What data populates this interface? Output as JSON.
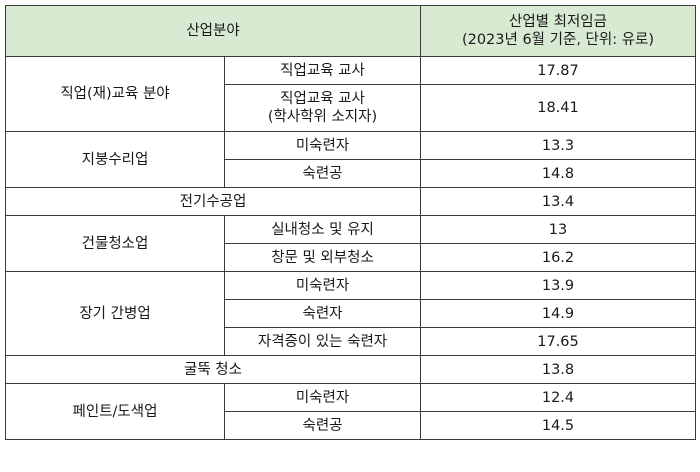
{
  "header": {
    "industry": "산업분야",
    "wage_line1": "산업별 최저임금",
    "wage_line2": "(2023년 6월 기준, 단위: 유로)"
  },
  "rows": [
    {
      "group": "직업(재)교육 분야",
      "sub": "직업교육 교사",
      "wage": "17.87"
    },
    {
      "sub_line1": "직업교육 교사",
      "sub_line2": "(학사학위 소지자)",
      "wage": "18.41"
    },
    {
      "group": "지붕수리업",
      "sub": "미숙련자",
      "wage": "13.3"
    },
    {
      "sub": "숙련공",
      "wage": "14.8"
    },
    {
      "group": "전기수공업",
      "wage": "13.4"
    },
    {
      "group": "건물청소업",
      "sub": "실내청소 및 유지",
      "wage": "13"
    },
    {
      "sub": "창문 및 외부청소",
      "wage": "16.2"
    },
    {
      "group": "장기 간병업",
      "sub": "미숙련자",
      "wage": "13.9"
    },
    {
      "sub": "숙련자",
      "wage": "14.9"
    },
    {
      "sub": "자격증이 있는 숙련자",
      "wage": "17.65"
    },
    {
      "group": "굴뚝 청소",
      "wage": "13.8"
    },
    {
      "group": "페인트/도색업",
      "sub": "미숙련자",
      "wage": "12.4"
    },
    {
      "sub": "숙련공",
      "wage": "14.5"
    }
  ],
  "colors": {
    "header_bg": "#d9ead3",
    "border": "#3a3a3a"
  }
}
